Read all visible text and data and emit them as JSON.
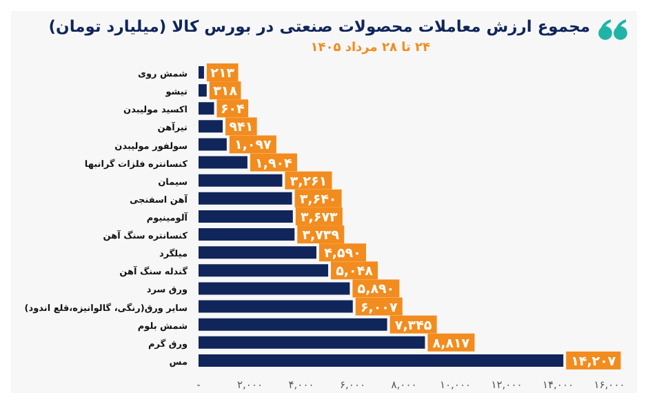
{
  "chart_data": {
    "type": "bar",
    "orientation": "horizontal",
    "title": "مجموع ارزش معاملات محصولات صنعتی در بورس کالا (میلیارد تومان)",
    "subtitle": "۲۴ تا ۲۸ مرداد ۱۴۰۵",
    "categories": [
      "شمش روی",
      "تیشو",
      "اکسید مولیبدن",
      "تیرآهن",
      "سولفور مولیبدن",
      "کنسانتره فلزات گرانبها",
      "سیمان",
      "آهن اسفنجی",
      "آلومینیوم",
      "کنسانتره سنگ آهن",
      "میلگرد",
      "گندله سنگ آهن",
      "ورق سرد",
      "سایر ورق(رنگی، گالوانیزه،قلع اندود)",
      "شمش بلوم",
      "ورق گرم",
      "مس"
    ],
    "values": [
      213,
      318,
      604,
      941,
      1097,
      1904,
      3261,
      3640,
      3673,
      3739,
      4590,
      5048,
      5890,
      6007,
      7345,
      8817,
      14207
    ],
    "value_labels": [
      "۲۱۳",
      "۳۱۸",
      "۶۰۴",
      "۹۴۱",
      "۱,۰۹۷",
      "۱,۹۰۴",
      "۳,۲۶۱",
      "۳,۶۴۰",
      "۳,۶۷۳",
      "۳,۷۳۹",
      "۴,۵۹۰",
      "۵,۰۴۸",
      "۵,۸۹۰",
      "۶,۰۰۷",
      "۷,۳۴۵",
      "۸,۸۱۷",
      "۱۴,۲۰۷"
    ],
    "color": "#10255a",
    "xlim": [
      0,
      16000
    ],
    "xticks": [
      {
        "value": 0,
        "label": "-"
      },
      {
        "value": 2000,
        "label": "۲,۰۰۰"
      },
      {
        "value": 4000,
        "label": "۴,۰۰۰"
      },
      {
        "value": 6000,
        "label": "۶,۰۰۰"
      },
      {
        "value": 8000,
        "label": "۸,۰۰۰"
      },
      {
        "value": 10000,
        "label": "۱۰,۰۰۰"
      },
      {
        "value": 12000,
        "label": "۱۲,۰۰۰"
      },
      {
        "value": 14000,
        "label": "۱۴,۰۰۰"
      },
      {
        "value": 16000,
        "label": "۱۶,۰۰۰"
      }
    ],
    "grid": false,
    "legend": false
  }
}
